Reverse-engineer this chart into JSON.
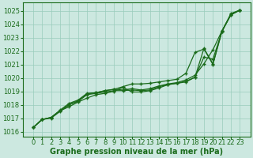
{
  "xlabel": "Graphe pression niveau de la mer (hPa)",
  "x": [
    0,
    1,
    2,
    3,
    4,
    5,
    6,
    7,
    8,
    9,
    10,
    11,
    12,
    13,
    14,
    15,
    16,
    17,
    18,
    19,
    20,
    21,
    22,
    23
  ],
  "line1": [
    1016.3,
    1016.9,
    1017.0,
    1017.5,
    1018.0,
    1018.3,
    1018.8,
    1018.9,
    1019.05,
    1019.15,
    1019.35,
    1019.55,
    1019.55,
    1019.6,
    1019.7,
    1019.8,
    1019.9,
    1020.35,
    1021.9,
    1022.15,
    1021.0,
    1023.5,
    1024.7,
    1025.05
  ],
  "line2": [
    1016.3,
    1016.9,
    1017.05,
    1017.6,
    1018.1,
    1018.35,
    1018.85,
    1018.9,
    1019.05,
    1019.15,
    1019.1,
    1019.2,
    1019.1,
    1019.2,
    1019.4,
    1019.55,
    1019.65,
    1019.85,
    1020.2,
    1021.05,
    1022.1,
    1023.5,
    1024.75,
    1025.05
  ],
  "line3": [
    1016.3,
    1016.9,
    1017.05,
    1017.55,
    1018.0,
    1018.25,
    1018.75,
    1018.85,
    1018.95,
    1019.05,
    1019.05,
    1019.1,
    1019.05,
    1019.1,
    1019.35,
    1019.5,
    1019.6,
    1019.75,
    1020.05,
    1021.55,
    1021.4,
    1023.45,
    1024.7,
    1025.05
  ],
  "line4": [
    1016.3,
    1016.9,
    1017.05,
    1017.55,
    1017.85,
    1018.2,
    1018.5,
    1018.75,
    1018.85,
    1019.0,
    1019.3,
    1018.95,
    1018.95,
    1019.05,
    1019.25,
    1019.5,
    1019.6,
    1019.7,
    1020.05,
    1022.2,
    1021.05,
    1023.45,
    1024.8,
    1025.05
  ],
  "line_color": "#1a6b1a",
  "marker_color": "#1a6b1a",
  "bg_color": "#cce8e0",
  "grid_color": "#99ccbb",
  "ylim": [
    1015.6,
    1025.6
  ],
  "yticks": [
    1016,
    1017,
    1018,
    1019,
    1020,
    1021,
    1022,
    1023,
    1024,
    1025
  ],
  "xticks": [
    0,
    1,
    2,
    3,
    4,
    5,
    6,
    7,
    8,
    9,
    10,
    11,
    12,
    13,
    14,
    15,
    16,
    17,
    18,
    19,
    20,
    21,
    22,
    23
  ],
  "tick_fontsize": 6.0,
  "xlabel_fontsize": 7.0
}
